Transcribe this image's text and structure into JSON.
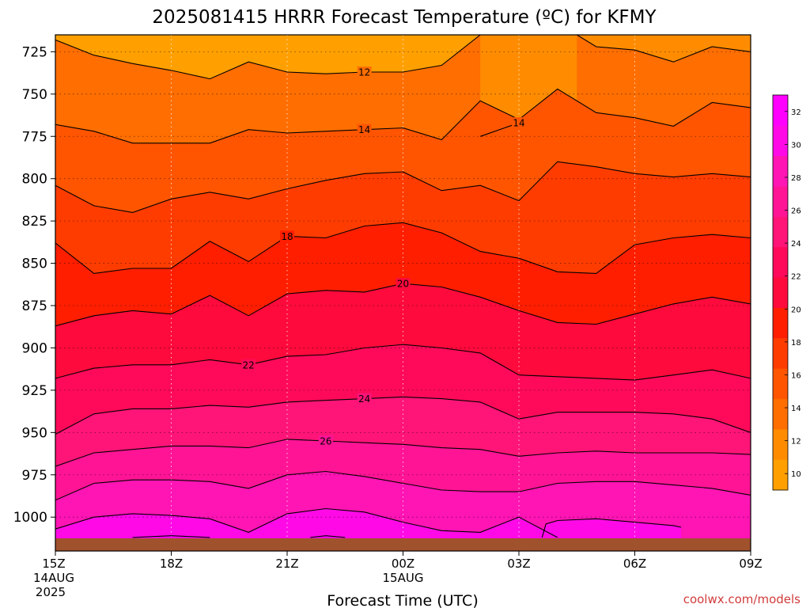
{
  "chart_data": {
    "type": "heatmap",
    "title": "2025081415 HRRR Forecast Temperature (ºC) for KFMY",
    "xlabel": "Forecast Time (UTC)",
    "ylabel": "",
    "credit": "coolwx.com/models",
    "y_scale": "linear, inverted (pressure, hPa)",
    "ylim": [
      1013,
      715
    ],
    "xlim": [
      0,
      18
    ],
    "grid": true,
    "x_ticks": [
      {
        "x": 0,
        "label": "15Z",
        "sub1": "14AUG",
        "sub2": "2025"
      },
      {
        "x": 3,
        "label": "18Z",
        "sub1": "",
        "sub2": ""
      },
      {
        "x": 6,
        "label": "21Z",
        "sub1": "",
        "sub2": ""
      },
      {
        "x": 9,
        "label": "00Z",
        "sub1": "15AUG",
        "sub2": ""
      },
      {
        "x": 12,
        "label": "03Z",
        "sub1": "",
        "sub2": ""
      },
      {
        "x": 15,
        "label": "06Z",
        "sub1": "",
        "sub2": ""
      },
      {
        "x": 18,
        "label": "09Z",
        "sub1": "",
        "sub2": ""
      }
    ],
    "y_ticks": [
      725,
      750,
      775,
      800,
      825,
      850,
      875,
      900,
      925,
      950,
      975,
      1000
    ],
    "colorbar": {
      "ticks": [
        10,
        12,
        14,
        16,
        18,
        20,
        22,
        24,
        26,
        28,
        30,
        32
      ],
      "levels": [
        9,
        11,
        13,
        15,
        17,
        19,
        21,
        23,
        25,
        27,
        29,
        31,
        33
      ],
      "colors": [
        "#ff9f00",
        "#ff8c00",
        "#ff6e00",
        "#ff5500",
        "#ff3c00",
        "#ff1e00",
        "#ff0a3c",
        "#ff0a5a",
        "#ff1478",
        "#ff1496",
        "#ff14b4",
        "#ff0ae6",
        "#ff00ff"
      ]
    },
    "terrain_color": "#a0522d",
    "surface_pressure": 1013,
    "contours": [
      {
        "value": 12,
        "label": "12",
        "label_x": 8.0,
        "points": [
          [
            0,
            718
          ],
          [
            1,
            727
          ],
          [
            2,
            732
          ],
          [
            3,
            736
          ],
          [
            4,
            741
          ],
          [
            5,
            731
          ],
          [
            6,
            737
          ],
          [
            7,
            738
          ],
          [
            8,
            737
          ],
          [
            9,
            737
          ],
          [
            10,
            733
          ],
          [
            11,
            715
          ]
        ]
      },
      {
        "value": 12,
        "label": "",
        "label_x": null,
        "points": [
          [
            13.5,
            715
          ],
          [
            14,
            722
          ],
          [
            15,
            724
          ],
          [
            16,
            731
          ],
          [
            17,
            722
          ],
          [
            18,
            725
          ]
        ]
      },
      {
        "value": 14,
        "label": "14",
        "label_x": 8.0,
        "points": [
          [
            0,
            768
          ],
          [
            1,
            772
          ],
          [
            2,
            779
          ],
          [
            3,
            779
          ],
          [
            4,
            779
          ],
          [
            5,
            771
          ],
          [
            6,
            773
          ],
          [
            7,
            772
          ],
          [
            8,
            771
          ],
          [
            9,
            770
          ],
          [
            10,
            777
          ],
          [
            11,
            754
          ],
          [
            12,
            765
          ],
          [
            13,
            747
          ],
          [
            14,
            761
          ],
          [
            15,
            764
          ],
          [
            16,
            769
          ],
          [
            17,
            755
          ],
          [
            18,
            758
          ]
        ]
      },
      {
        "value": 14,
        "label": "14",
        "label_x": 12.0,
        "points": [
          [
            11,
            775
          ],
          [
            12,
            767
          ]
        ]
      },
      {
        "value": 16,
        "label": "",
        "label_x": null,
        "points": [
          [
            0,
            804
          ],
          [
            1,
            816
          ],
          [
            2,
            820
          ],
          [
            3,
            812
          ],
          [
            4,
            808
          ],
          [
            5,
            812
          ],
          [
            6,
            806
          ],
          [
            7,
            801
          ],
          [
            8,
            797
          ],
          [
            9,
            796
          ],
          [
            10,
            807
          ],
          [
            11,
            804
          ],
          [
            12,
            813
          ],
          [
            13,
            790
          ],
          [
            14,
            793
          ],
          [
            15,
            797
          ],
          [
            16,
            799
          ],
          [
            17,
            797
          ],
          [
            18,
            799
          ]
        ]
      },
      {
        "value": 18,
        "label": "18",
        "label_x": 6.0,
        "points": [
          [
            0,
            838
          ],
          [
            1,
            856
          ],
          [
            2,
            853
          ],
          [
            3,
            853
          ],
          [
            4,
            837
          ],
          [
            5,
            849
          ],
          [
            6,
            834
          ],
          [
            7,
            835
          ],
          [
            8,
            828
          ],
          [
            9,
            826
          ],
          [
            10,
            832
          ],
          [
            11,
            843
          ],
          [
            12,
            847
          ],
          [
            13,
            855
          ],
          [
            14,
            856
          ],
          [
            15,
            839
          ],
          [
            16,
            835
          ],
          [
            17,
            833
          ],
          [
            18,
            835
          ]
        ]
      },
      {
        "value": 20,
        "label": "20",
        "label_x": 9.0,
        "points": [
          [
            0,
            887
          ],
          [
            1,
            881
          ],
          [
            2,
            878
          ],
          [
            3,
            880
          ],
          [
            4,
            869
          ],
          [
            5,
            881
          ],
          [
            6,
            868
          ],
          [
            7,
            866
          ],
          [
            8,
            867
          ],
          [
            9,
            862
          ],
          [
            10,
            864
          ],
          [
            11,
            870
          ],
          [
            12,
            878
          ],
          [
            13,
            885
          ],
          [
            14,
            886
          ],
          [
            15,
            880
          ],
          [
            16,
            874
          ],
          [
            17,
            870
          ],
          [
            18,
            874
          ]
        ]
      },
      {
        "value": 22,
        "label": "22",
        "label_x": 5.0,
        "points": [
          [
            0,
            918
          ],
          [
            1,
            912
          ],
          [
            2,
            910
          ],
          [
            3,
            910
          ],
          [
            4,
            907
          ],
          [
            5,
            910
          ],
          [
            6,
            905
          ],
          [
            7,
            904
          ],
          [
            8,
            900
          ],
          [
            9,
            898
          ],
          [
            10,
            900
          ],
          [
            11,
            903
          ],
          [
            12,
            916
          ],
          [
            13,
            917
          ],
          [
            14,
            918
          ],
          [
            15,
            919
          ],
          [
            16,
            916
          ],
          [
            17,
            913
          ],
          [
            18,
            918
          ]
        ]
      },
      {
        "value": 24,
        "label": "24",
        "label_x": 8.0,
        "points": [
          [
            0,
            951
          ],
          [
            1,
            939
          ],
          [
            2,
            936
          ],
          [
            3,
            936
          ],
          [
            4,
            934
          ],
          [
            5,
            935
          ],
          [
            6,
            932
          ],
          [
            7,
            931
          ],
          [
            8,
            930
          ],
          [
            9,
            929
          ],
          [
            10,
            930
          ],
          [
            11,
            932
          ],
          [
            12,
            942
          ],
          [
            13,
            938
          ],
          [
            14,
            938
          ],
          [
            15,
            938
          ],
          [
            16,
            939
          ],
          [
            17,
            942
          ],
          [
            18,
            950
          ]
        ]
      },
      {
        "value": 26,
        "label": "26",
        "label_x": 7.0,
        "points": [
          [
            0,
            970
          ],
          [
            1,
            962
          ],
          [
            2,
            960
          ],
          [
            3,
            958
          ],
          [
            4,
            958
          ],
          [
            5,
            959
          ],
          [
            6,
            954
          ],
          [
            7,
            955
          ],
          [
            8,
            956
          ],
          [
            9,
            957
          ],
          [
            10,
            959
          ],
          [
            11,
            960
          ],
          [
            12,
            964
          ],
          [
            13,
            962
          ],
          [
            14,
            961
          ],
          [
            15,
            962
          ],
          [
            16,
            962
          ],
          [
            17,
            962
          ],
          [
            18,
            963
          ]
        ]
      },
      {
        "value": 28,
        "label": "",
        "label_x": null,
        "points": [
          [
            0,
            990
          ],
          [
            1,
            980
          ],
          [
            2,
            978
          ],
          [
            3,
            978
          ],
          [
            4,
            979
          ],
          [
            5,
            983
          ],
          [
            6,
            975
          ],
          [
            7,
            973
          ],
          [
            8,
            976
          ],
          [
            9,
            980
          ],
          [
            10,
            984
          ],
          [
            11,
            985
          ],
          [
            12,
            985
          ],
          [
            13,
            980
          ],
          [
            14,
            979
          ],
          [
            15,
            979
          ],
          [
            16,
            981
          ],
          [
            17,
            983
          ],
          [
            18,
            987
          ]
        ]
      },
      {
        "value": 30,
        "label": "",
        "label_x": null,
        "points": [
          [
            0,
            1007
          ],
          [
            1,
            1000
          ],
          [
            2,
            998
          ],
          [
            3,
            999
          ],
          [
            4,
            1001
          ],
          [
            5,
            1009
          ],
          [
            6,
            998
          ],
          [
            7,
            995
          ],
          [
            8,
            997
          ],
          [
            9,
            1003
          ],
          [
            10,
            1008
          ],
          [
            11,
            1009
          ],
          [
            12,
            1000
          ],
          [
            13,
            1012
          ]
        ]
      },
      {
        "value": 30,
        "label": "",
        "label_x": null,
        "points": [
          [
            12.6,
            1012
          ],
          [
            12.7,
            1004
          ],
          [
            13,
            1002
          ],
          [
            14,
            1001
          ],
          [
            15,
            1003
          ],
          [
            16,
            1005
          ],
          [
            16.2,
            1006
          ]
        ]
      },
      {
        "value": 32,
        "label": "",
        "label_x": null,
        "points": [
          [
            2,
            1012
          ],
          [
            3,
            1011
          ],
          [
            4,
            1012
          ]
        ]
      },
      {
        "value": 32,
        "label": "",
        "label_x": null,
        "points": [
          [
            6.6,
            1012
          ],
          [
            7,
            1011
          ],
          [
            7.5,
            1012
          ]
        ]
      }
    ]
  }
}
